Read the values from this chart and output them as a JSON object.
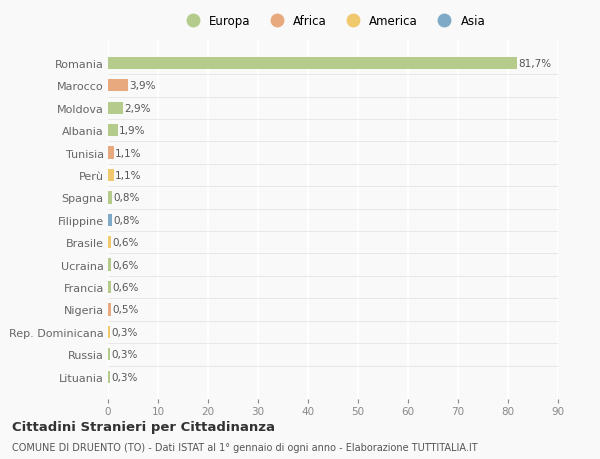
{
  "categories": [
    "Romania",
    "Marocco",
    "Moldova",
    "Albania",
    "Tunisia",
    "Perù",
    "Spagna",
    "Filippine",
    "Brasile",
    "Ucraina",
    "Francia",
    "Nigeria",
    "Rep. Dominicana",
    "Russia",
    "Lituania"
  ],
  "values": [
    81.7,
    3.9,
    2.9,
    1.9,
    1.1,
    1.1,
    0.8,
    0.8,
    0.6,
    0.6,
    0.6,
    0.5,
    0.3,
    0.3,
    0.3
  ],
  "labels": [
    "81,7%",
    "3,9%",
    "2,9%",
    "1,9%",
    "1,1%",
    "1,1%",
    "0,8%",
    "0,8%",
    "0,6%",
    "0,6%",
    "0,6%",
    "0,5%",
    "0,3%",
    "0,3%",
    "0,3%"
  ],
  "colors": [
    "#b5cb8b",
    "#e8a97e",
    "#b5cb8b",
    "#b5cb8b",
    "#e8a97e",
    "#f0c96e",
    "#b5cb8b",
    "#7eaac8",
    "#f0c96e",
    "#b5cb8b",
    "#b5cb8b",
    "#e8a97e",
    "#f0c96e",
    "#b5cb8b",
    "#b5cb8b"
  ],
  "legend_labels": [
    "Europa",
    "Africa",
    "America",
    "Asia"
  ],
  "legend_colors": [
    "#b5cb8b",
    "#e8a97e",
    "#f0c96e",
    "#7eaac8"
  ],
  "xlim": [
    0,
    90
  ],
  "xticks": [
    0,
    10,
    20,
    30,
    40,
    50,
    60,
    70,
    80,
    90
  ],
  "title": "Cittadini Stranieri per Cittadinanza",
  "subtitle": "COMUNE DI DRUENTO (TO) - Dati ISTAT al 1° gennaio di ogni anno - Elaborazione TUTTITALIA.IT",
  "background_color": "#f9f9f9",
  "grid_color": "#ffffff",
  "bar_height": 0.55
}
